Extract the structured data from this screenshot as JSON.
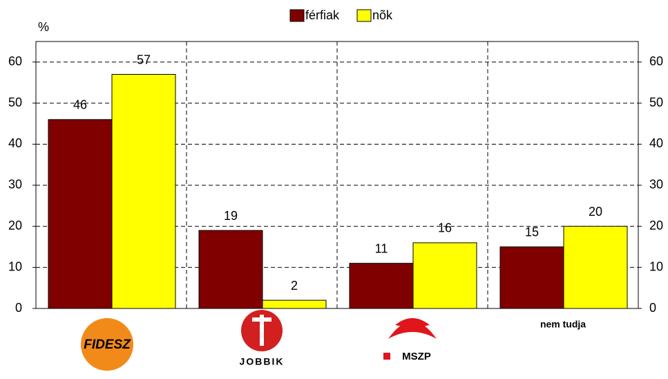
{
  "chart_data": {
    "type": "bar",
    "y_label": "%",
    "categories": [
      "FIDESZ",
      "JOBBIK",
      "MSZP",
      "nem tudja"
    ],
    "series": [
      {
        "name": "férfiak",
        "color": "#800000",
        "values": [
          46,
          19,
          11,
          15
        ]
      },
      {
        "name": "nõk",
        "color": "#ffff00",
        "values": [
          57,
          2,
          16,
          20
        ]
      }
    ],
    "ylim": [
      0,
      65
    ],
    "yticks": [
      0,
      10,
      20,
      30,
      40,
      50,
      60
    ],
    "y2lim": [
      0,
      65
    ],
    "y2ticks": [
      0,
      10,
      20,
      30,
      40,
      50,
      60
    ],
    "grid": true,
    "legend": "top"
  }
}
